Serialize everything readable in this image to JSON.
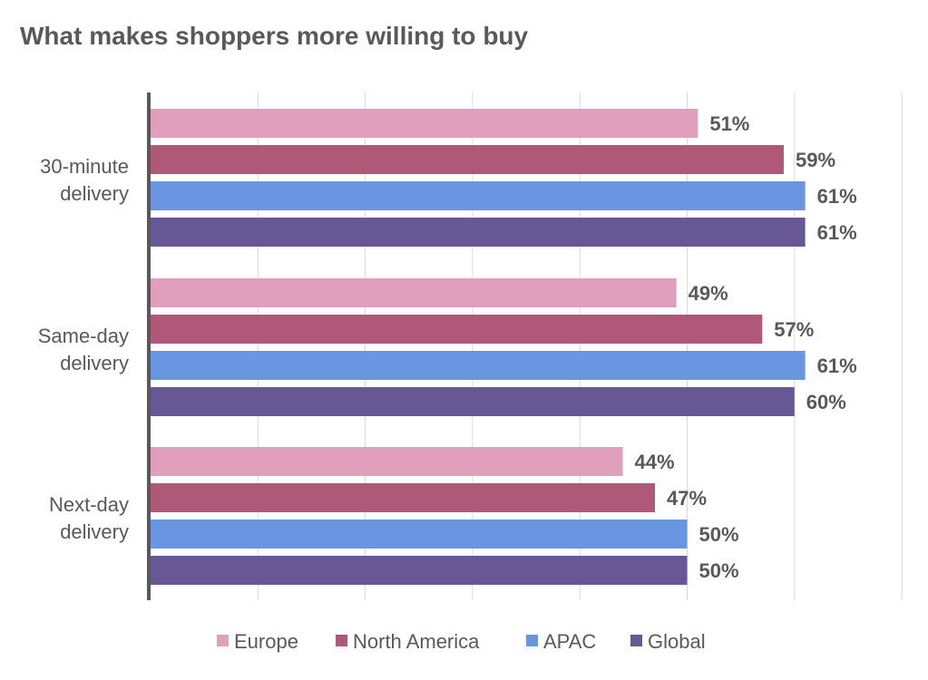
{
  "chart_data": {
    "type": "bar",
    "orientation": "horizontal",
    "title": "What makes shoppers more willing to buy",
    "categories": [
      [
        "30-minute",
        "delivery"
      ],
      [
        "Same-day",
        "delivery"
      ],
      [
        "Next-day",
        "delivery"
      ]
    ],
    "series": [
      {
        "name": "Europe",
        "color": "#e0a0bd",
        "values": [
          51,
          49,
          44
        ],
        "labels": [
          "51%",
          "49%",
          "44%"
        ]
      },
      {
        "name": "North America",
        "color": "#b05878",
        "values": [
          59,
          57,
          47
        ],
        "labels": [
          "59%",
          "57%",
          "47%"
        ]
      },
      {
        "name": "APAC",
        "color": "#6a95e0",
        "values": [
          61,
          61,
          50
        ],
        "labels": [
          "61%",
          "61%",
          "50%"
        ]
      },
      {
        "name": "Global",
        "color": "#675895",
        "values": [
          61,
          60,
          50
        ],
        "labels": [
          "61%",
          "60%",
          "50%"
        ]
      }
    ],
    "xlim": [
      0,
      70
    ],
    "grid": true,
    "legend": "bottom",
    "xlabel": "",
    "ylabel": ""
  }
}
